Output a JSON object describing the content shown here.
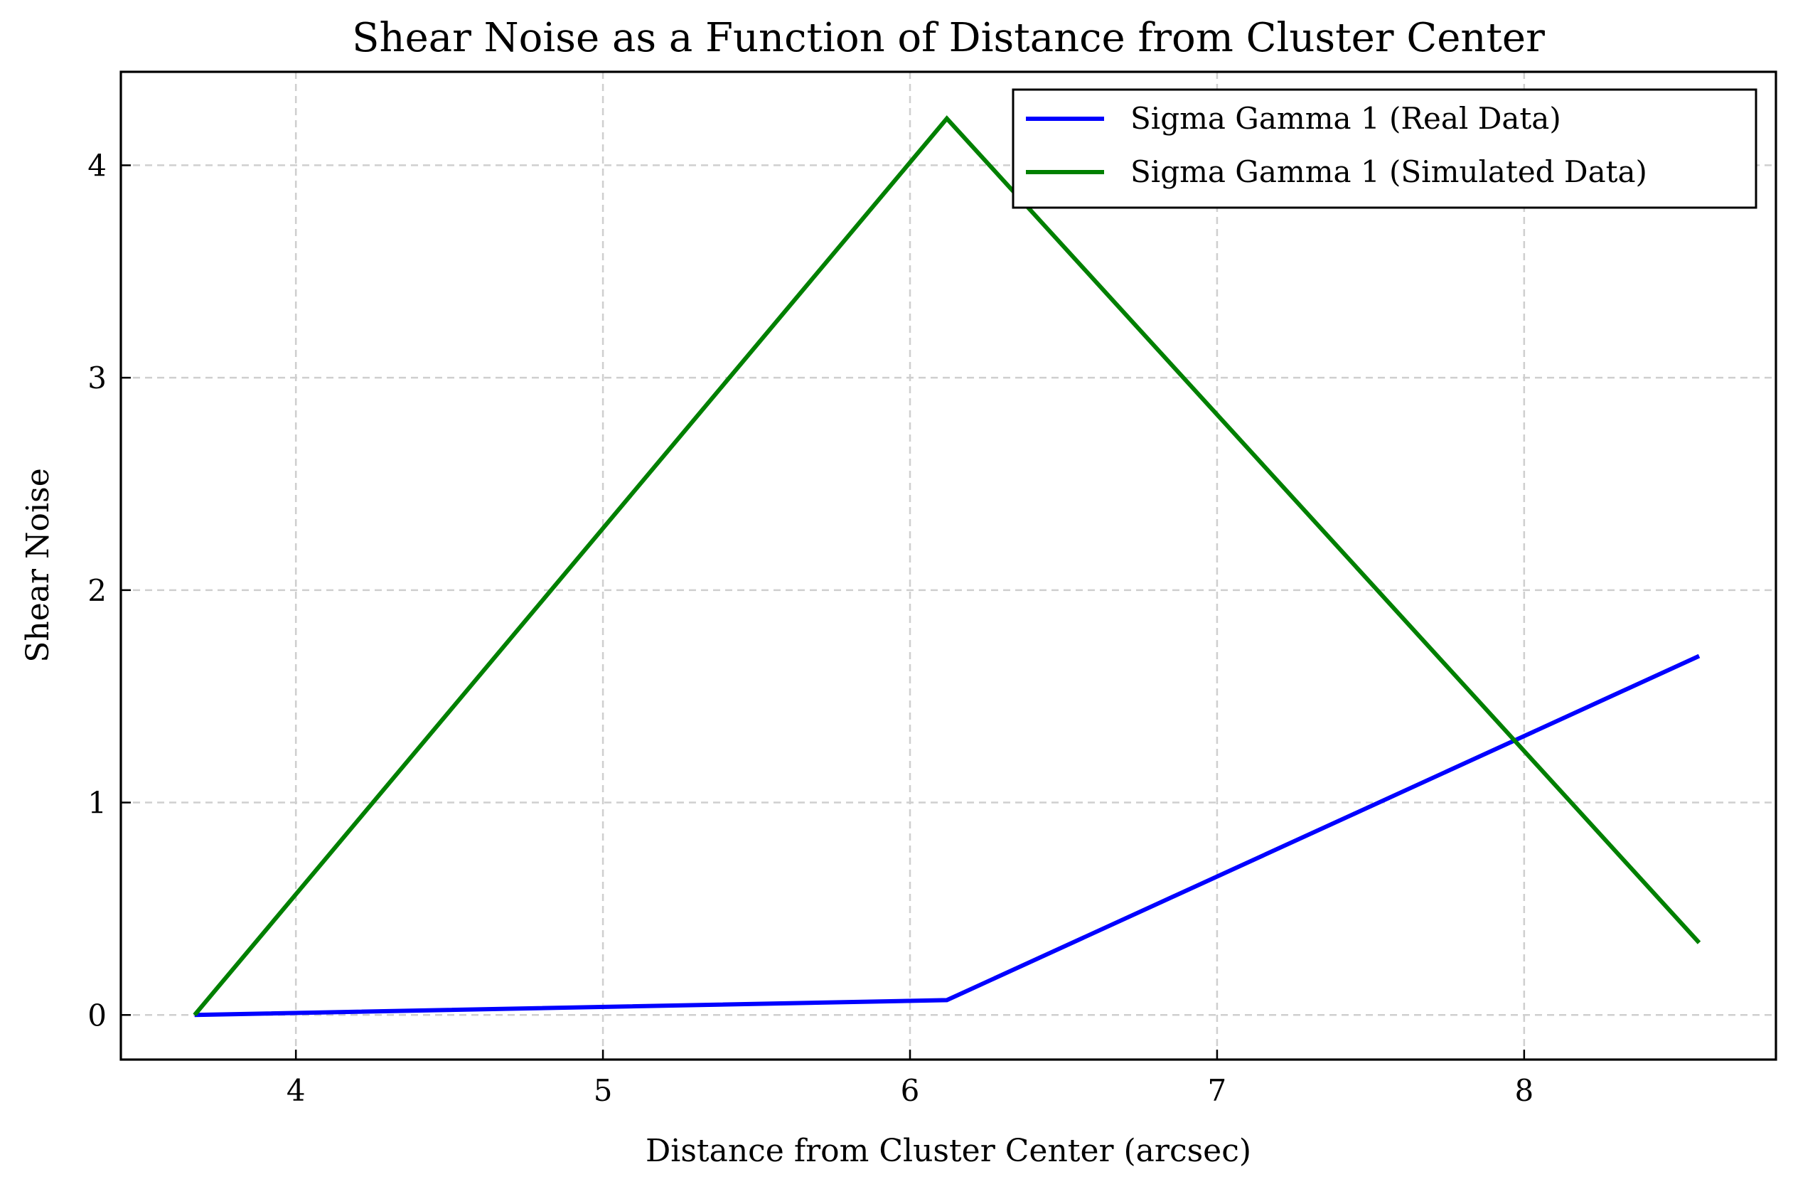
{
  "chart_data": {
    "type": "line",
    "title": "Shear Noise as a Function of Distance from Cluster Center",
    "xlabel": "Distance from Cluster Center (arcsec)",
    "ylabel": "Shear Noise",
    "xlim": [
      3.43,
      8.82
    ],
    "ylim": [
      -0.21,
      4.44
    ],
    "xticks": [
      4,
      5,
      6,
      7,
      8
    ],
    "yticks": [
      0,
      1,
      2,
      3,
      4
    ],
    "grid": true,
    "legend_position": "top-right",
    "series": [
      {
        "name": "Sigma Gamma 1 (Real Data)",
        "color": "#0000ff",
        "x": [
          3.67,
          6.12,
          8.57
        ],
        "y": [
          0.0,
          0.07,
          1.69
        ]
      },
      {
        "name": "Sigma Gamma 1 (Simulated Data)",
        "color": "#008000",
        "x": [
          3.67,
          6.12,
          8.57
        ],
        "y": [
          0.0,
          4.22,
          0.34
        ]
      }
    ]
  }
}
